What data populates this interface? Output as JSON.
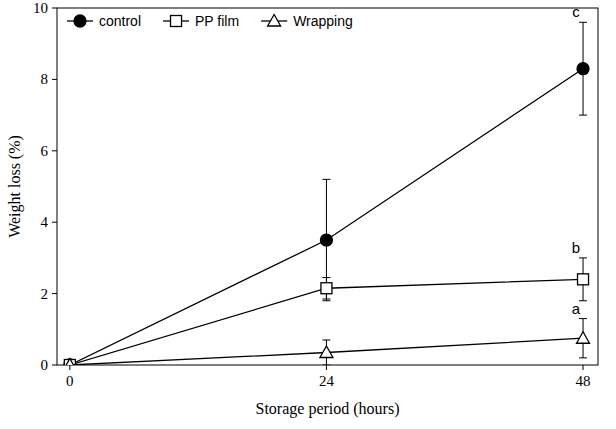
{
  "chart_data": {
    "type": "line",
    "x_label": "Storage period (hours)",
    "y_label": "Weight loss (%)",
    "x": [
      0,
      24,
      48
    ],
    "xlim": [
      -1.2,
      49.4
    ],
    "xticks": [
      0,
      24,
      48
    ],
    "ylim": [
      0,
      10
    ],
    "yticks": [
      0,
      2,
      4,
      6,
      8,
      10
    ],
    "grid": false,
    "legend": "upper left",
    "series": [
      {
        "name": "control",
        "color": "#000000",
        "marker": "filled-circle",
        "line_style": "solid",
        "values": [
          0,
          3.5,
          8.3
        ],
        "errors": [
          0,
          1.7,
          1.3
        ],
        "letter": "c"
      },
      {
        "name": "PP film",
        "color": "#000000",
        "marker": "open-square",
        "line_style": "solid",
        "values": [
          0,
          2.15,
          2.4
        ],
        "errors": [
          0,
          0.3,
          0.6
        ],
        "letter": "b"
      },
      {
        "name": "Wrapping",
        "color": "#000000",
        "marker": "open-triangle",
        "line_style": "solid",
        "values": [
          0,
          0.35,
          0.75
        ],
        "errors": [
          0,
          0.35,
          0.55
        ],
        "letter": "a"
      }
    ]
  }
}
